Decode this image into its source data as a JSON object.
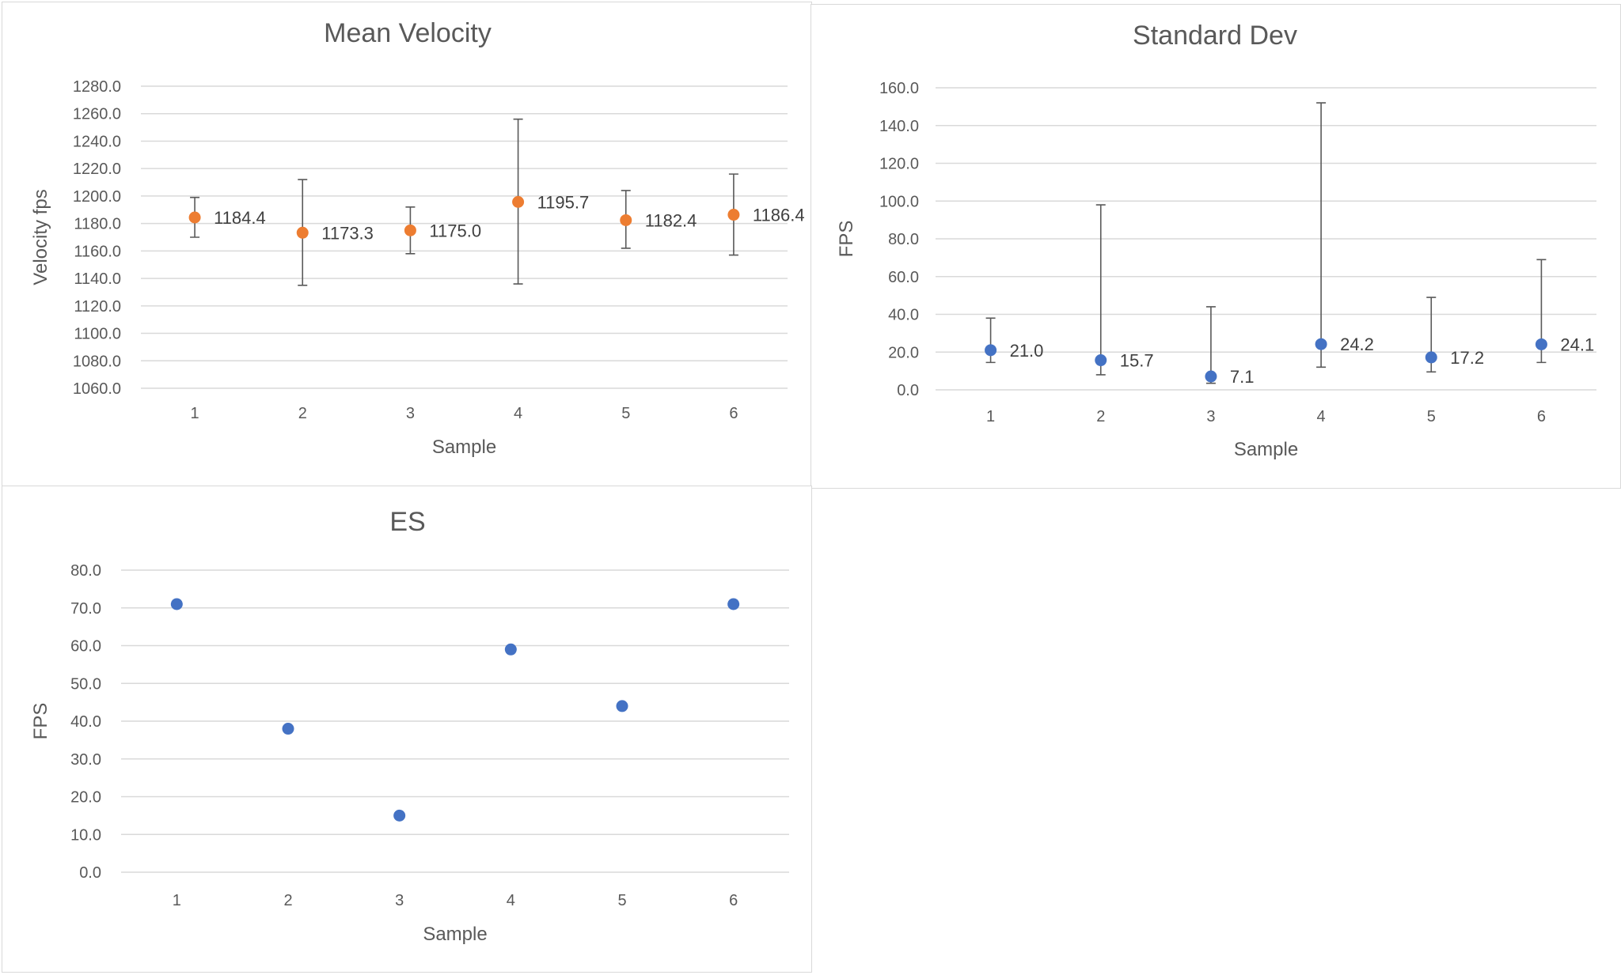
{
  "chart_data": [
    {
      "id": "mean",
      "type": "scatter",
      "title": "Mean Velocity",
      "xlabel": "Sample",
      "ylabel": "Velocity fps",
      "ylim": [
        1060,
        1280
      ],
      "y_step": 20,
      "grid": true,
      "marker_color": "#ED7D31",
      "x": [
        1,
        2,
        3,
        4,
        5,
        6
      ],
      "x_tick_labels": [
        "1",
        "2",
        "3",
        "4",
        "5",
        "6"
      ],
      "y_tick_labels": [
        "1280.0",
        "1260.0",
        "1240.0",
        "1220.0",
        "1200.0",
        "1180.0",
        "1160.0",
        "1140.0",
        "1120.0",
        "1100.0",
        "1080.0",
        "1060.0"
      ],
      "values": [
        1184.4,
        1173.3,
        1175.0,
        1195.7,
        1182.4,
        1186.4
      ],
      "data_labels": [
        "1184.4",
        "1173.3",
        "1175.0",
        "1195.7",
        "1182.4",
        "1186.4"
      ],
      "error_low": [
        1170,
        1135,
        1158,
        1136,
        1162,
        1157
      ],
      "error_high": [
        1199,
        1212,
        1192,
        1256,
        1204,
        1216
      ]
    },
    {
      "id": "sd",
      "type": "scatter",
      "title": "Standard Dev",
      "xlabel": "Sample",
      "ylabel": "FPS",
      "ylim": [
        0,
        160
      ],
      "y_step": 20,
      "grid": true,
      "marker_color": "#4472C4",
      "x": [
        1,
        2,
        3,
        4,
        5,
        6
      ],
      "x_tick_labels": [
        "1",
        "2",
        "3",
        "4",
        "5",
        "6"
      ],
      "y_tick_labels": [
        "160.0",
        "140.0",
        "120.0",
        "100.0",
        "80.0",
        "60.0",
        "40.0",
        "20.0",
        "0.0"
      ],
      "values": [
        21.0,
        15.7,
        7.1,
        24.2,
        17.2,
        24.1
      ],
      "data_labels": [
        "21.0",
        "15.7",
        "7.1",
        "24.2",
        "17.2",
        "24.1"
      ],
      "error_low": [
        14.5,
        8,
        3.5,
        12,
        9.5,
        14.5
      ],
      "error_high": [
        38,
        98,
        44,
        152,
        49,
        69
      ]
    },
    {
      "id": "es",
      "type": "scatter",
      "title": "ES",
      "xlabel": "Sample",
      "ylabel": "FPS",
      "ylim": [
        0,
        80
      ],
      "y_step": 10,
      "grid": true,
      "marker_color": "#4472C4",
      "x": [
        1,
        2,
        3,
        4,
        5,
        6
      ],
      "x_tick_labels": [
        "1",
        "2",
        "3",
        "4",
        "5",
        "6"
      ],
      "y_tick_labels": [
        "80.0",
        "70.0",
        "60.0",
        "50.0",
        "40.0",
        "30.0",
        "20.0",
        "10.0",
        "0.0"
      ],
      "values": [
        71,
        38,
        15,
        59,
        44,
        71
      ]
    }
  ]
}
